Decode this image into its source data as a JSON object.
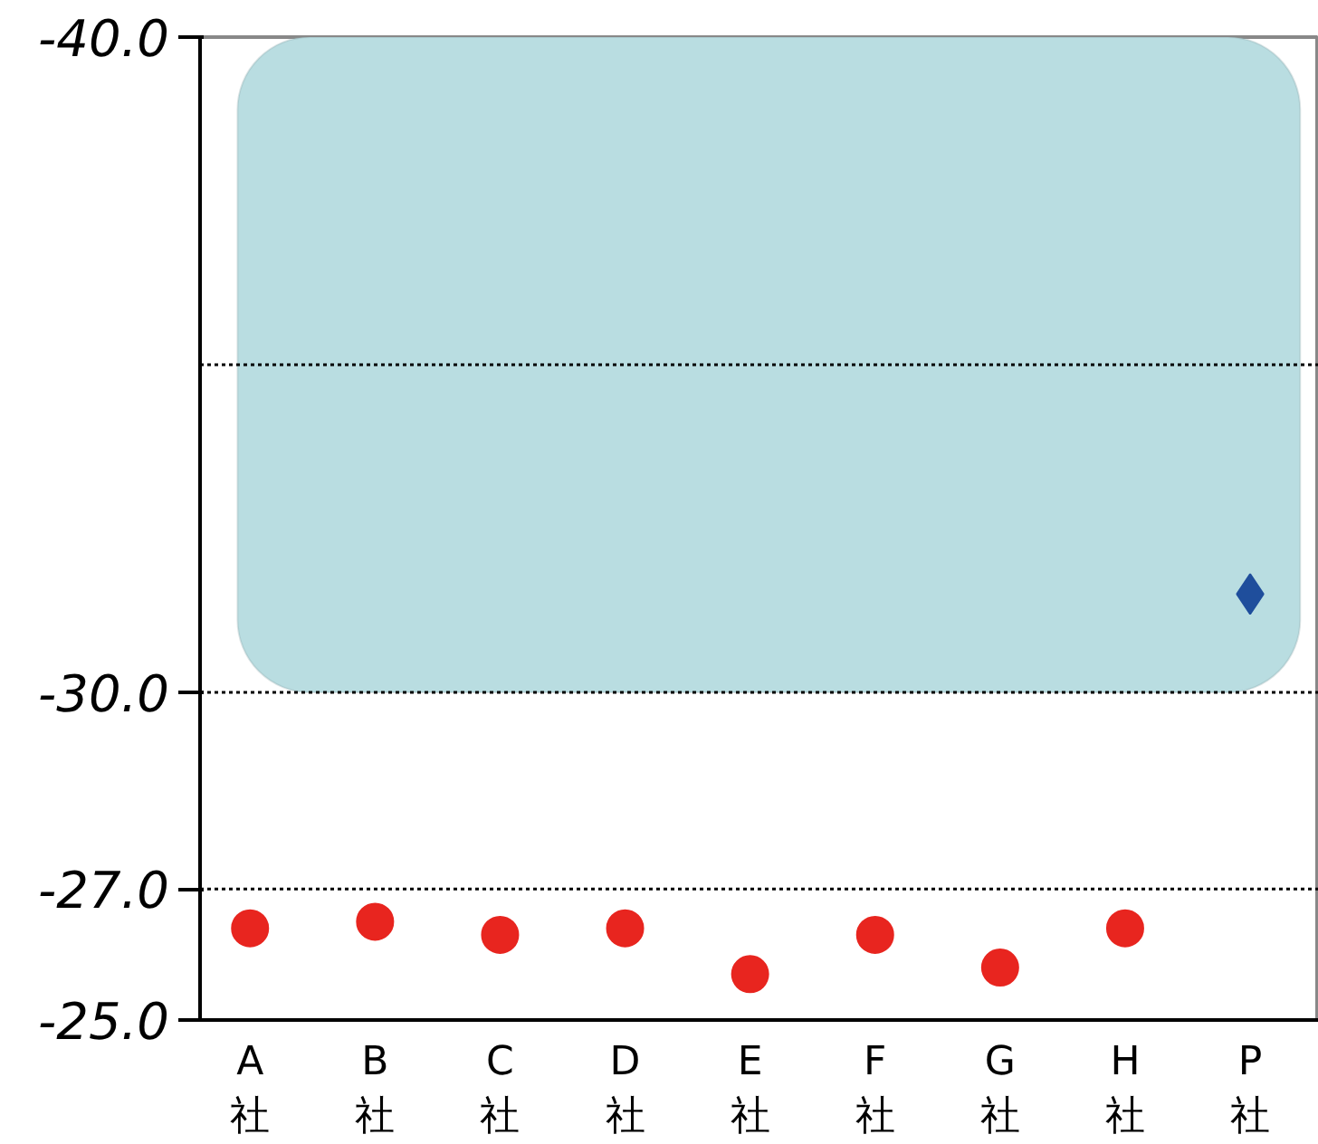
{
  "chart_data": {
    "type": "scatter",
    "categories": [
      "A社",
      "B社",
      "C社",
      "D社",
      "E社",
      "F社",
      "G社",
      "H社",
      "P社"
    ],
    "series": [
      {
        "color": "#e8251f",
        "marker": "circle",
        "values": [
          -26.4,
          -26.5,
          -26.3,
          -26.4,
          -25.7,
          -26.3,
          -25.8,
          -26.4,
          null
        ]
      },
      {
        "color": "#1f4e9c",
        "marker": "diamond",
        "values": [
          null,
          null,
          null,
          null,
          null,
          null,
          null,
          null,
          -31.5
        ]
      }
    ],
    "ylim": [
      -25,
      -40
    ],
    "yticks": [
      {
        "value": -40,
        "label": "-40.0"
      },
      {
        "value": -30,
        "label": "-30.0"
      },
      {
        "value": -27,
        "label": "-27.0"
      },
      {
        "value": -25,
        "label": "-25.0"
      }
    ],
    "ref_lines": [
      {
        "axis": "y",
        "value": -35,
        "label": null,
        "color": "#000000",
        "line_style": "dotted"
      },
      {
        "axis": "y",
        "value": -30,
        "label": null,
        "color": "#000000",
        "line_style": "dotted"
      },
      {
        "axis": "y",
        "value": -27,
        "label": null,
        "color": "#000000",
        "line_style": "dotted"
      }
    ],
    "bands": [
      {
        "axis": "y",
        "from": -40,
        "to": -30,
        "label": null,
        "color": "#b9dde1"
      }
    ],
    "grid": false
  }
}
